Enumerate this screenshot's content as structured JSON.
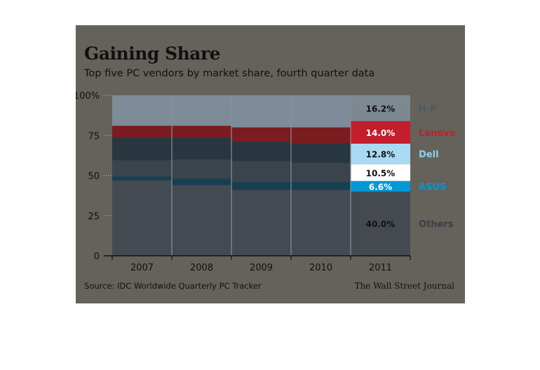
{
  "title": "Gaining Share",
  "subtitle": "Top five PC vendors by market share, fourth quarter data",
  "source": "Source: IDC Worldwide Quarterly PC Tracker",
  "credit": "The Wall Street Journal",
  "colors": {
    "frame": "#64625a",
    "plot": "#3f444c",
    "hp": "#7e8c99",
    "lenovo": "#7b1c20",
    "dell": "#28363f",
    "acer": "#3a444c",
    "asus": "#173f52",
    "others": "#444a52",
    "lenovo_2011": "#c31e2b",
    "dell_2011": "#a8dbf2",
    "asus_2011": "#0099d6",
    "acer_2011": "#ffffff",
    "others_2011": "#454a51",
    "hp_2011": "#7d8891"
  },
  "chart_data": {
    "type": "bar",
    "stacked": true,
    "categories": [
      "2007",
      "2008",
      "2009",
      "2010",
      "2011"
    ],
    "ylim": [
      0,
      100
    ],
    "yticks": [
      {
        "value": 0,
        "label": "0"
      },
      {
        "value": 25,
        "label": "25"
      },
      {
        "value": 50,
        "label": "50"
      },
      {
        "value": 75,
        "label": "75"
      },
      {
        "value": 100,
        "label": "100%"
      }
    ],
    "series": [
      {
        "key": "others",
        "name": "Others",
        "values": [
          47,
          44,
          41,
          41,
          40.0
        ]
      },
      {
        "key": "asus",
        "name": "ASUS",
        "values": [
          2.5,
          4,
          5,
          5,
          6.6
        ]
      },
      {
        "key": "acer",
        "name": "",
        "values": [
          10,
          12,
          13,
          12,
          10.5
        ]
      },
      {
        "key": "dell",
        "name": "Dell",
        "values": [
          14,
          13.5,
          12,
          12,
          12.8
        ]
      },
      {
        "key": "lenovo",
        "name": "Lenovo",
        "values": [
          7.5,
          7.5,
          9,
          10,
          14.0
        ]
      },
      {
        "key": "hp",
        "name": "H-P",
        "values": [
          19,
          19,
          20,
          20,
          16.2
        ]
      }
    ],
    "data_labels_2011": [
      "40.0%",
      "6.6%",
      "10.5%",
      "12.8%",
      "14.0%",
      "16.2%"
    ],
    "legend_position": "right"
  }
}
